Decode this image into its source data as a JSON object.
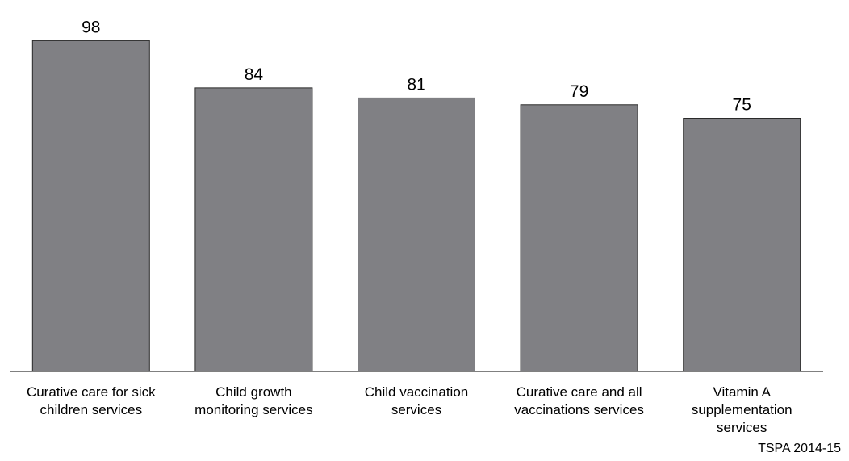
{
  "chart_data": {
    "type": "bar",
    "categories": [
      [
        "Curative care for sick",
        "children services"
      ],
      [
        "Child growth",
        "monitoring services"
      ],
      [
        "Child vaccination",
        "services"
      ],
      [
        "Curative care and all",
        "vaccinations services"
      ],
      [
        "Vitamin A",
        "supplementation",
        "services"
      ]
    ],
    "values": [
      98,
      84,
      81,
      79,
      75
    ],
    "data_labels": [
      "98",
      "84",
      "81",
      "79",
      "75"
    ],
    "ylim": [
      0,
      100
    ],
    "grid": false,
    "legend": "none",
    "bar_color": "#808084",
    "bar_edge_color": "#2a2a2a",
    "axis_color": "#000000"
  },
  "source_note": "TSPA 2014-15"
}
